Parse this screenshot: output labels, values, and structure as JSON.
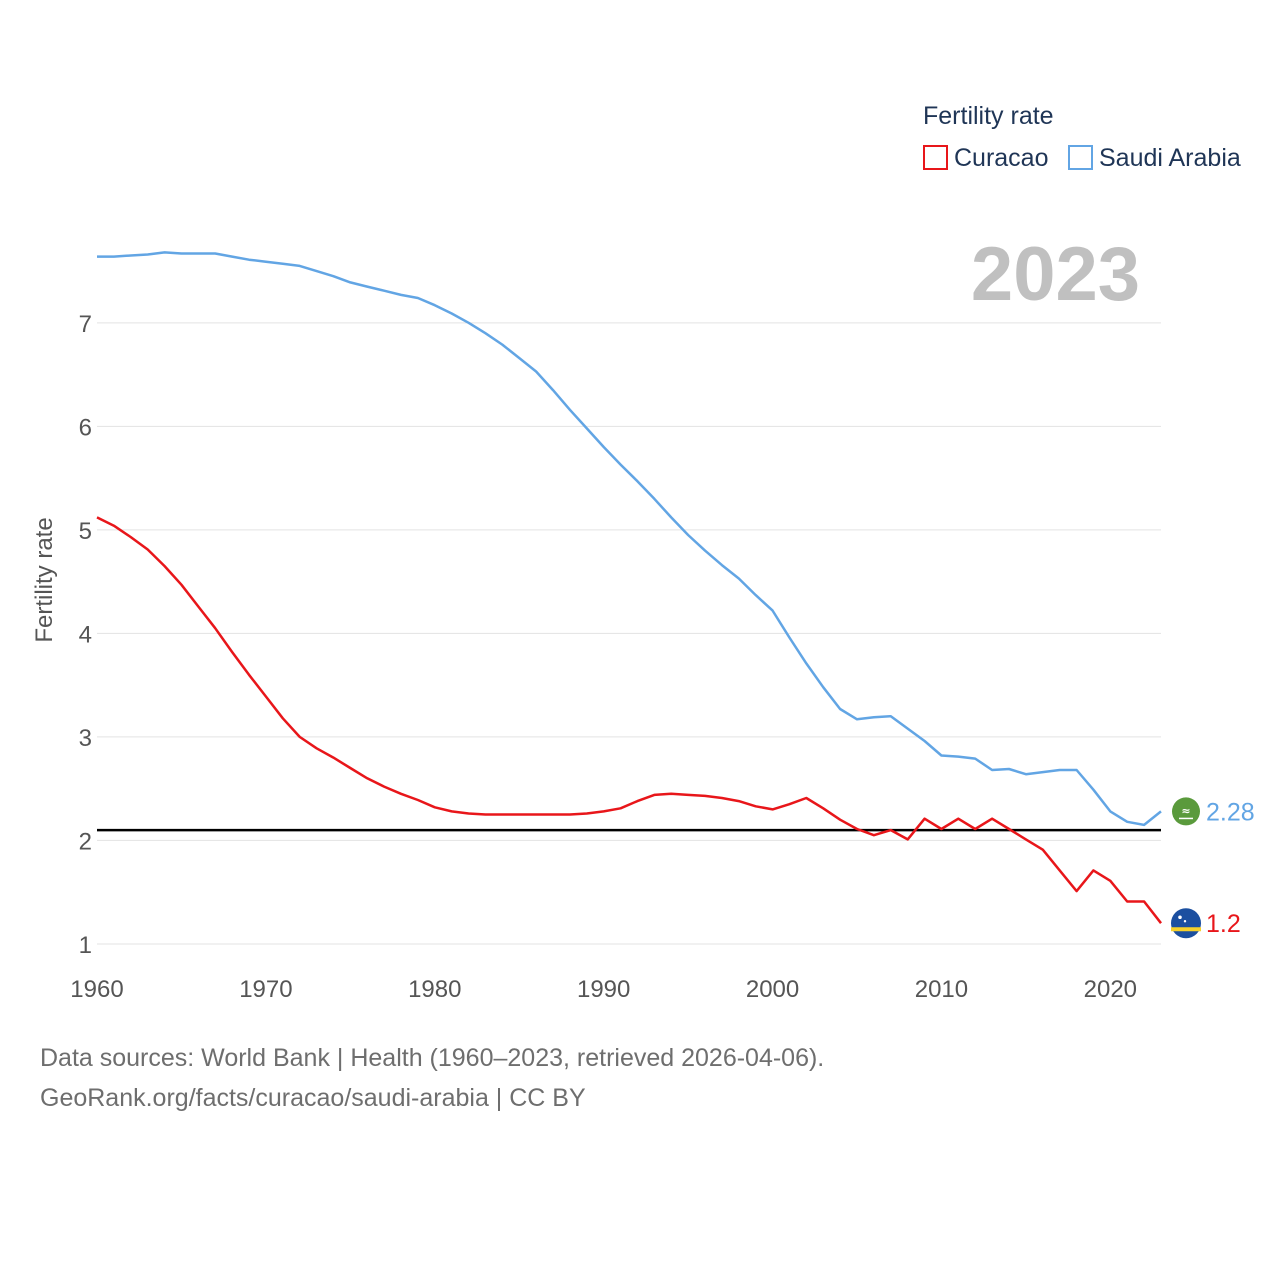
{
  "chart_data": {
    "type": "line",
    "title": "Fertility rate",
    "year_label": "2023",
    "xlabel": "",
    "ylabel": "Fertility rate",
    "xlim": [
      1960,
      2023
    ],
    "ylim": [
      0.7,
      7.8
    ],
    "x_ticks": [
      1960,
      1970,
      1980,
      1990,
      2000,
      2010,
      2020
    ],
    "y_ticks": [
      1,
      2,
      3,
      4,
      5,
      6,
      7
    ],
    "reference_line": 2.1,
    "legend_position": "top-right",
    "x": [
      1960,
      1961,
      1962,
      1963,
      1964,
      1965,
      1966,
      1967,
      1968,
      1969,
      1970,
      1971,
      1972,
      1973,
      1974,
      1975,
      1976,
      1977,
      1978,
      1979,
      1980,
      1981,
      1982,
      1983,
      1984,
      1985,
      1986,
      1987,
      1988,
      1989,
      1990,
      1991,
      1992,
      1993,
      1994,
      1995,
      1996,
      1997,
      1998,
      1999,
      2000,
      2001,
      2002,
      2003,
      2004,
      2005,
      2006,
      2007,
      2008,
      2009,
      2010,
      2011,
      2012,
      2013,
      2014,
      2015,
      2016,
      2017,
      2018,
      2019,
      2020,
      2021,
      2022,
      2023
    ],
    "series": [
      {
        "name": "Curacao",
        "color": "#e8161a",
        "end_label": "1.2",
        "flag": "curacao-flag",
        "values": [
          5.12,
          5.04,
          4.93,
          4.81,
          4.65,
          4.47,
          4.26,
          4.05,
          3.82,
          3.6,
          3.39,
          3.18,
          3.0,
          2.89,
          2.8,
          2.7,
          2.6,
          2.52,
          2.45,
          2.39,
          2.32,
          2.28,
          2.26,
          2.25,
          2.25,
          2.25,
          2.25,
          2.25,
          2.25,
          2.26,
          2.28,
          2.31,
          2.38,
          2.44,
          2.45,
          2.44,
          2.43,
          2.41,
          2.38,
          2.33,
          2.3,
          2.35,
          2.41,
          2.31,
          2.2,
          2.11,
          2.05,
          2.1,
          2.01,
          2.21,
          2.11,
          2.21,
          2.11,
          2.21,
          2.11,
          2.01,
          1.91,
          1.71,
          1.51,
          1.71,
          1.61,
          1.41,
          1.41,
          1.2
        ]
      },
      {
        "name": "Saudi Arabia",
        "color": "#62a5e4",
        "end_label": "2.28",
        "flag": "saudi-arabia-flag",
        "values": [
          7.64,
          7.64,
          7.65,
          7.66,
          7.68,
          7.67,
          7.67,
          7.67,
          7.64,
          7.61,
          7.59,
          7.57,
          7.55,
          7.5,
          7.45,
          7.39,
          7.35,
          7.31,
          7.27,
          7.24,
          7.17,
          7.09,
          7.0,
          6.9,
          6.79,
          6.66,
          6.53,
          6.35,
          6.16,
          5.98,
          5.8,
          5.63,
          5.47,
          5.3,
          5.12,
          4.95,
          4.8,
          4.66,
          4.53,
          4.37,
          4.22,
          3.96,
          3.71,
          3.48,
          3.27,
          3.17,
          3.19,
          3.2,
          3.08,
          2.96,
          2.82,
          2.81,
          2.79,
          2.68,
          2.69,
          2.64,
          2.66,
          2.68,
          2.68,
          2.49,
          2.28,
          2.18,
          2.15,
          2.28
        ]
      }
    ]
  },
  "footer": {
    "sources": "Data sources: World Bank | Health (1960–2023, retrieved 2026-04-06).",
    "attribution": "GeoRank.org/facts/curacao/saudi-arabia | CC BY"
  }
}
